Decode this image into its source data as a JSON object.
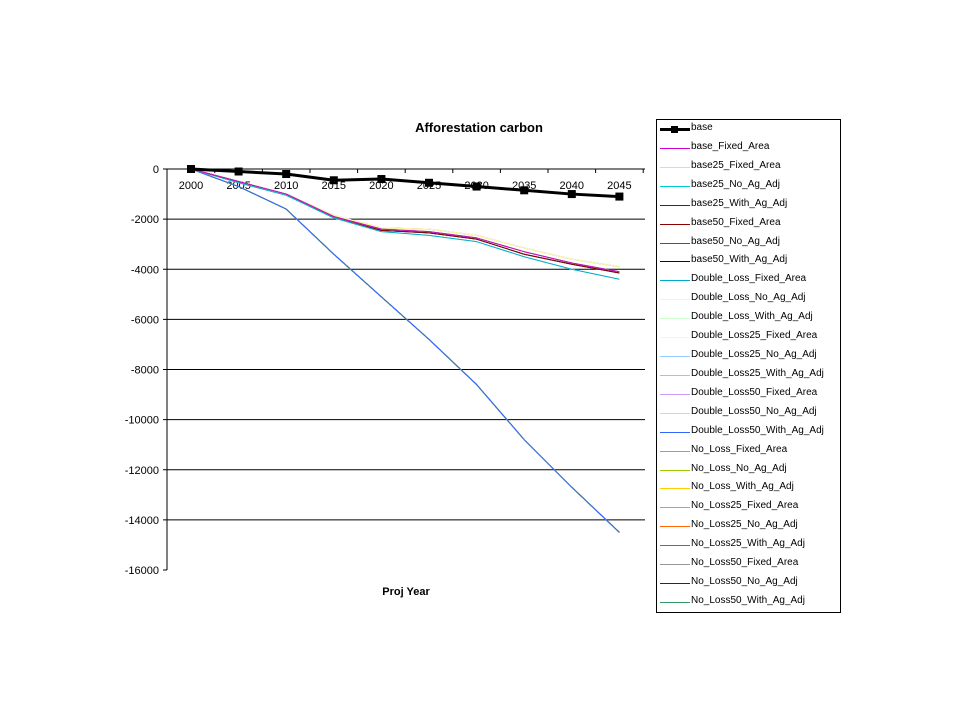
{
  "chart_data": {
    "type": "line",
    "title": "Afforestation carbon",
    "xlabel": "Proj Year",
    "ylabel": "",
    "x": [
      2000,
      2005,
      2010,
      2015,
      2020,
      2025,
      2030,
      2035,
      2040,
      2045
    ],
    "x_tick_labels": [
      "2000",
      "2005",
      "2010",
      "2015",
      "2020",
      "2025",
      "2030",
      "2035",
      "2040",
      "2045"
    ],
    "y_tick_labels": [
      "0",
      "-2000",
      "-4000",
      "-6000",
      "-8000",
      "-10000",
      "-12000",
      "-14000",
      "-16000"
    ],
    "ylim": [
      -16000,
      0
    ],
    "grid": "horizontal",
    "legend_position": "right",
    "series": [
      {
        "name": "base",
        "color": "#000000",
        "width": 3,
        "marker": "square",
        "values": [
          0,
          -100,
          -200,
          -450,
          -400,
          -550,
          -700,
          -850,
          -1000,
          -1100
        ]
      },
      {
        "name": "base_Fixed_Area",
        "color": "#cc00cc",
        "values": [
          0,
          -500,
          -1000,
          -1900,
          -2400,
          -2500,
          -2750,
          -3300,
          -3750,
          -4100
        ]
      },
      {
        "name": "base25_Fixed_Area",
        "color": "#ffee00",
        "values": [
          0,
          -500,
          -1000,
          -1900,
          -2400,
          -2500,
          -2750,
          -3300,
          -3750,
          -4100
        ]
      },
      {
        "name": "base25_No_Ag_Adj",
        "color": "#00ccdd",
        "values": [
          0,
          -500,
          -1000,
          -1900,
          -2400,
          -2500,
          -2750,
          -3300,
          -3750,
          -4100
        ]
      },
      {
        "name": "base25_With_Ag_Adj",
        "color": "#660099",
        "values": [
          0,
          -500,
          -1000,
          -1900,
          -2400,
          -2500,
          -2750,
          -3300,
          -3750,
          -4100
        ]
      },
      {
        "name": "base50_Fixed_Area",
        "color": "#8b0000",
        "values": [
          0,
          -500,
          -1000,
          -1900,
          -2450,
          -2550,
          -2800,
          -3400,
          -3800,
          -4150
        ]
      },
      {
        "name": "base50_No_Ag_Adj",
        "color": "#007777",
        "values": [
          0,
          -500,
          -1000,
          -1900,
          -2450,
          -2550,
          -2800,
          -3400,
          -3800,
          -4150
        ]
      },
      {
        "name": "base50_With_Ag_Adj",
        "color": "#000080",
        "values": [
          0,
          -500,
          -1000,
          -1900,
          -2450,
          -2550,
          -2800,
          -3400,
          -3800,
          -4150
        ]
      },
      {
        "name": "Double_Loss_Fixed_Area",
        "color": "#00aacc",
        "values": [
          0,
          -550,
          -1050,
          -1950,
          -2500,
          -2650,
          -2900,
          -3500,
          -4000,
          -4400
        ]
      },
      {
        "name": "Double_Loss_No_Ag_Adj",
        "color": "#ccffff",
        "values": [
          0,
          -550,
          -1050,
          -1950,
          -2500,
          -2650,
          -2900,
          -3500,
          -4000,
          -4400
        ]
      },
      {
        "name": "Double_Loss_With_Ag_Adj",
        "color": "#ccffcc",
        "values": [
          0,
          -550,
          -1050,
          -1950,
          -2500,
          -2650,
          -2900,
          -3500,
          -4000,
          -4400
        ]
      },
      {
        "name": "Double_Loss25_Fixed_Area",
        "color": "#ffff99",
        "values": [
          0,
          -500,
          -1000,
          -1850,
          -2350,
          -2400,
          -2650,
          -3150,
          -3600,
          -3900
        ]
      },
      {
        "name": "Double_Loss25_No_Ag_Adj",
        "color": "#99ccff",
        "values": [
          0,
          -500,
          -1000,
          -1850,
          -2350,
          -2400,
          -2650,
          -3150,
          -3600,
          -3900
        ]
      },
      {
        "name": "Double_Loss25_With_Ag_Adj",
        "color": "#ff99cc",
        "values": [
          0,
          -500,
          -1000,
          -1850,
          -2350,
          -2400,
          -2650,
          -3150,
          -3600,
          -3900
        ]
      },
      {
        "name": "Double_Loss50_Fixed_Area",
        "color": "#cc99ff",
        "values": [
          0,
          -500,
          -1000,
          -1850,
          -2350,
          -2400,
          -2650,
          -3150,
          -3600,
          -3900
        ]
      },
      {
        "name": "Double_Loss50_No_Ag_Adj",
        "color": "#ffcc99",
        "values": [
          0,
          -500,
          -1000,
          -1850,
          -2350,
          -2400,
          -2650,
          -3150,
          -3600,
          -3900
        ]
      },
      {
        "name": "Double_Loss50_With_Ag_Adj",
        "color": "#3366ff",
        "values": [
          0,
          -700,
          -1600,
          -3400,
          -5100,
          -6800,
          -8600,
          -10800,
          -12700,
          -14500
        ]
      },
      {
        "name": "No_Loss_Fixed_Area",
        "color": "#33cccc",
        "values": [
          0,
          -700,
          -1600,
          -3400,
          -5100,
          -6800,
          -8600,
          -10800,
          -12700,
          -14500
        ]
      },
      {
        "name": "No_Loss_No_Ag_Adj",
        "color": "#99cc00",
        "values": [
          0,
          -700,
          -1600,
          -3400,
          -5100,
          -6800,
          -8600,
          -10800,
          -12700,
          -14500
        ]
      },
      {
        "name": "No_Loss_With_Ag_Adj",
        "color": "#ffcc00",
        "values": [
          0,
          -700,
          -1600,
          -3400,
          -5100,
          -6800,
          -8600,
          -10800,
          -12700,
          -14500
        ]
      },
      {
        "name": "No_Loss25_Fixed_Area",
        "color": "#ff9900",
        "values": [
          0,
          -700,
          -1600,
          -3400,
          -5100,
          -6800,
          -8600,
          -10800,
          -12700,
          -14500
        ]
      },
      {
        "name": "No_Loss25_No_Ag_Adj",
        "color": "#ff6600",
        "values": [
          0,
          -700,
          -1600,
          -3400,
          -5100,
          -6800,
          -8600,
          -10800,
          -12700,
          -14500
        ]
      },
      {
        "name": "No_Loss25_With_Ag_Adj",
        "color": "#666699",
        "values": [
          0,
          -700,
          -1600,
          -3400,
          -5100,
          -6800,
          -8600,
          -10800,
          -12700,
          -14500
        ]
      },
      {
        "name": "No_Loss50_Fixed_Area",
        "color": "#969696",
        "values": [
          0,
          -700,
          -1600,
          -3400,
          -5100,
          -6800,
          -8600,
          -10800,
          -12700,
          -14500
        ]
      },
      {
        "name": "No_Loss50_No_Ag_Adj",
        "color": "#003366",
        "values": [
          0,
          -700,
          -1600,
          -3400,
          -5100,
          -6800,
          -8600,
          -10800,
          -12700,
          -14500
        ]
      },
      {
        "name": "No_Loss50_With_Ag_Adj",
        "color": "#339966",
        "values": [
          0,
          -700,
          -1600,
          -3400,
          -5100,
          -6800,
          -8600,
          -10800,
          -12700,
          -14500
        ]
      }
    ]
  }
}
